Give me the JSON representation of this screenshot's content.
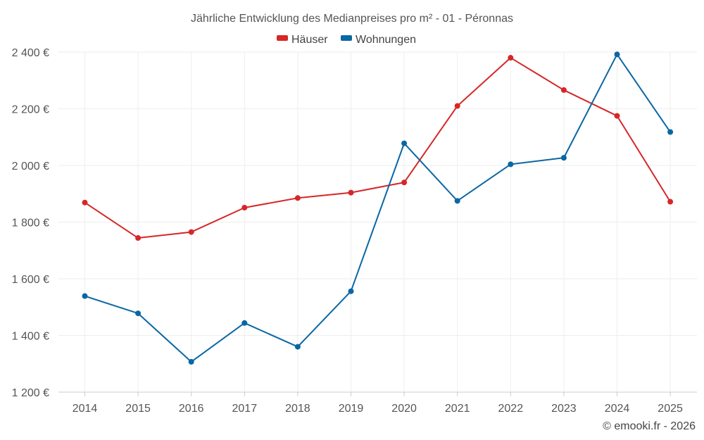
{
  "chart_data": {
    "type": "line",
    "title": "Jährliche Entwicklung des Medianpreises pro m² - 01 - Péronnas",
    "categories": [
      "2014",
      "2015",
      "2016",
      "2017",
      "2018",
      "2019",
      "2020",
      "2021",
      "2022",
      "2023",
      "2024",
      "2025"
    ],
    "series": [
      {
        "name": "Häuser",
        "color": "#d62728",
        "values": [
          1869,
          1744,
          1765,
          1851,
          1885,
          1904,
          1940,
          2210,
          2380,
          2266,
          2175,
          1872
        ]
      },
      {
        "name": "Wohnungen",
        "color": "#0a67a3",
        "values": [
          1539,
          1478,
          1307,
          1444,
          1360,
          1556,
          2078,
          1875,
          2004,
          2027,
          2392,
          2118
        ]
      }
    ],
    "ylim": [
      1200,
      2400
    ],
    "yticks": [
      1200,
      1400,
      1600,
      1800,
      2000,
      2200,
      2400
    ],
    "ytick_labels": [
      "1 200 €",
      "1 400 €",
      "1 600 €",
      "1 800 €",
      "2 000 €",
      "2 200 €",
      "2 400 €"
    ],
    "xlabel": "",
    "ylabel": "",
    "grid": true,
    "legend_position": "top-center"
  },
  "credit": "© emooki.fr - 2026"
}
